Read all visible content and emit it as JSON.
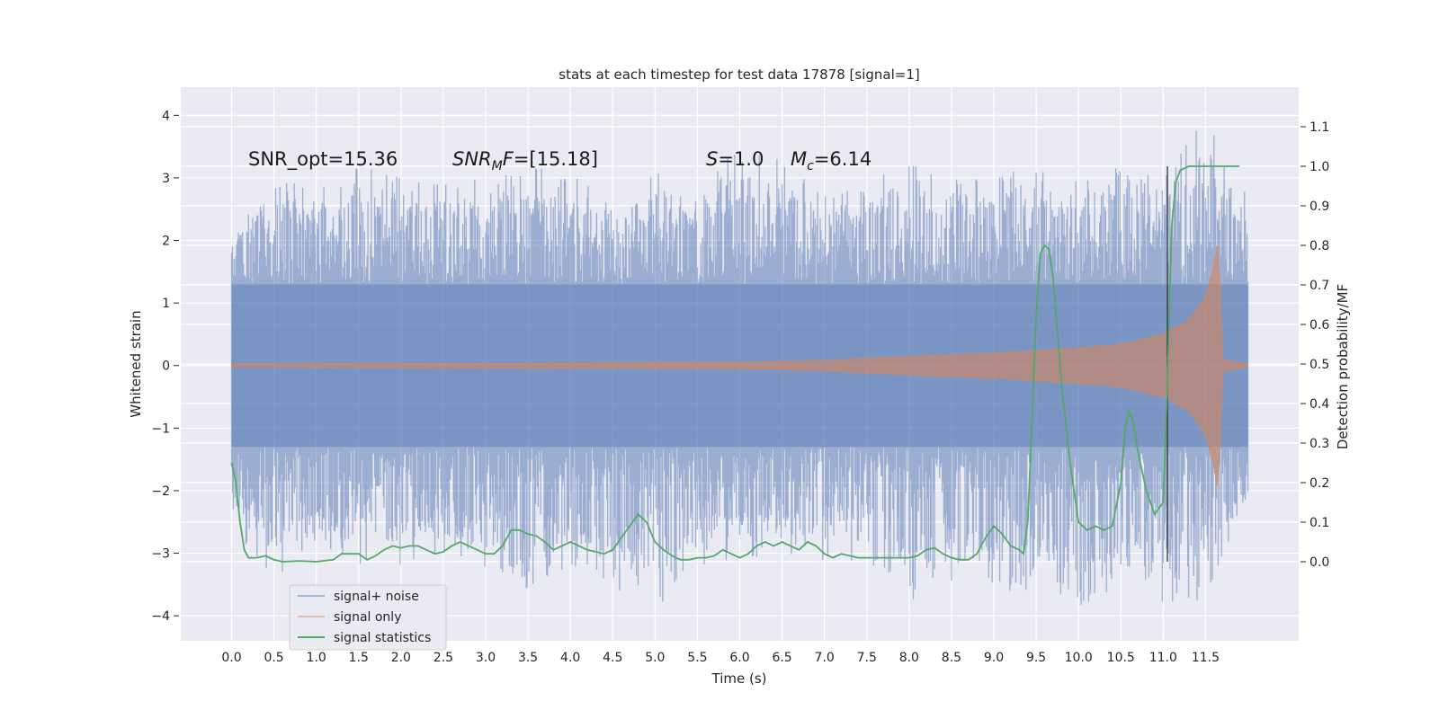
{
  "chart_data": {
    "type": "line",
    "title": "stats at each timestep for test data 17878 [signal=1]",
    "xlabel": "Time (s)",
    "ylabel": "Whitened strain",
    "y2label": "Detection probability/MF",
    "xlim": [
      -0.6,
      12.6
    ],
    "ylim": [
      -4.4,
      4.45
    ],
    "y2lim": [
      -0.2,
      1.2
    ],
    "x_ticks": [
      "0.0",
      "0.5",
      "1.0",
      "1.5",
      "2.0",
      "2.5",
      "3.0",
      "3.5",
      "4.0",
      "4.5",
      "5.0",
      "5.5",
      "6.0",
      "6.5",
      "7.0",
      "7.5",
      "8.0",
      "8.5",
      "9.0",
      "9.5",
      "10.0",
      "10.5",
      "11.0",
      "11.5"
    ],
    "y_ticks": [
      "4",
      "3",
      "2",
      "1",
      "0",
      "−1",
      "−2",
      "−3",
      "−4"
    ],
    "y2_ticks": [
      "1.1",
      "1.0",
      "0.9",
      "0.8",
      "0.7",
      "0.6",
      "0.5",
      "0.4",
      "0.3",
      "0.2",
      "0.1",
      "0.0"
    ],
    "grid": true,
    "legend_placement": "lower-left",
    "annotations": {
      "snr_opt": "SNR_opt=15.36",
      "snr_mf_math": "SNR",
      "snr_mf_sub": "M",
      "snr_mf_math2": "F",
      "snr_mf_value": "=[15.18]",
      "s_math": "S",
      "s_value": "=1.0",
      "mc_math": "M",
      "mc_sub": "c",
      "mc_value": "=6.14"
    },
    "vline_x": 11.05,
    "series": [
      {
        "name": "signal+ noise",
        "color": "#4c72b0",
        "envelope_x": [
          0.0,
          0.5,
          1.0,
          1.5,
          2.0,
          2.5,
          3.0,
          3.5,
          4.0,
          4.5,
          5.0,
          5.5,
          6.0,
          6.5,
          7.0,
          7.5,
          8.0,
          8.5,
          9.0,
          9.5,
          10.0,
          10.5,
          11.0,
          11.5,
          12.0
        ],
        "envelope_hi": [
          2.0,
          3.1,
          2.8,
          3.2,
          3.0,
          2.9,
          3.1,
          3.2,
          3.1,
          2.6,
          3.1,
          2.9,
          3.5,
          3.3,
          2.8,
          2.9,
          3.3,
          3.0,
          3.2,
          3.1,
          3.1,
          3.2,
          3.0,
          4.0,
          2.7
        ],
        "envelope_lo": [
          -2.6,
          -3.4,
          -3.0,
          -3.2,
          -3.2,
          -3.0,
          -3.3,
          -3.8,
          -3.3,
          -3.6,
          -3.9,
          -3.2,
          -3.1,
          -3.0,
          -3.2,
          -3.1,
          -3.8,
          -3.5,
          -3.6,
          -3.6,
          -3.9,
          -3.5,
          -3.8,
          -3.8,
          -2.2
        ]
      },
      {
        "name": "signal only",
        "color": "#dd8452",
        "amplitude_x": [
          0.0,
          2.0,
          4.0,
          6.0,
          7.0,
          8.0,
          9.0,
          10.0,
          10.5,
          11.0,
          11.3,
          11.5,
          11.6,
          11.65,
          11.7,
          12.0
        ],
        "amplitude": [
          0.02,
          0.03,
          0.04,
          0.05,
          0.08,
          0.15,
          0.2,
          0.28,
          0.34,
          0.5,
          0.72,
          1.1,
          1.6,
          2.0,
          0.1,
          0.02
        ]
      },
      {
        "name": "signal statistics",
        "color": "#55a868",
        "x": [
          0.0,
          0.05,
          0.1,
          0.15,
          0.2,
          0.3,
          0.4,
          0.5,
          0.6,
          0.8,
          1.0,
          1.2,
          1.3,
          1.4,
          1.5,
          1.6,
          1.7,
          1.8,
          1.9,
          2.0,
          2.1,
          2.2,
          2.3,
          2.4,
          2.5,
          2.6,
          2.7,
          2.8,
          2.9,
          3.0,
          3.1,
          3.2,
          3.3,
          3.4,
          3.5,
          3.6,
          3.7,
          3.8,
          3.9,
          4.0,
          4.1,
          4.2,
          4.3,
          4.4,
          4.5,
          4.6,
          4.7,
          4.8,
          4.9,
          5.0,
          5.1,
          5.2,
          5.3,
          5.4,
          5.5,
          5.6,
          5.7,
          5.8,
          5.9,
          6.0,
          6.1,
          6.2,
          6.3,
          6.4,
          6.5,
          6.6,
          6.7,
          6.8,
          6.9,
          7.0,
          7.1,
          7.2,
          7.4,
          7.6,
          7.8,
          8.0,
          8.1,
          8.2,
          8.3,
          8.4,
          8.5,
          8.6,
          8.7,
          8.8,
          8.9,
          9.0,
          9.1,
          9.2,
          9.3,
          9.35,
          9.4,
          9.45,
          9.5,
          9.55,
          9.6,
          9.65,
          9.7,
          9.8,
          9.9,
          10.0,
          10.1,
          10.2,
          10.3,
          10.4,
          10.5,
          10.55,
          10.6,
          10.65,
          10.7,
          10.8,
          10.9,
          11.0,
          11.05,
          11.1,
          11.15,
          11.2,
          11.3,
          11.5,
          11.7,
          11.9
        ],
        "y": [
          0.25,
          0.2,
          0.1,
          0.03,
          0.01,
          0.01,
          0.015,
          0.005,
          0.0,
          0.002,
          0.0,
          0.005,
          0.02,
          0.02,
          0.02,
          0.005,
          0.015,
          0.03,
          0.04,
          0.035,
          0.04,
          0.04,
          0.03,
          0.02,
          0.025,
          0.04,
          0.05,
          0.04,
          0.03,
          0.02,
          0.02,
          0.04,
          0.08,
          0.08,
          0.07,
          0.065,
          0.05,
          0.03,
          0.04,
          0.05,
          0.04,
          0.03,
          0.025,
          0.02,
          0.03,
          0.06,
          0.09,
          0.12,
          0.1,
          0.05,
          0.03,
          0.015,
          0.005,
          0.005,
          0.01,
          0.01,
          0.015,
          0.03,
          0.02,
          0.01,
          0.02,
          0.04,
          0.05,
          0.04,
          0.05,
          0.04,
          0.03,
          0.05,
          0.04,
          0.02,
          0.01,
          0.02,
          0.01,
          0.01,
          0.01,
          0.01,
          0.015,
          0.03,
          0.035,
          0.02,
          0.01,
          0.005,
          0.005,
          0.02,
          0.06,
          0.09,
          0.07,
          0.04,
          0.03,
          0.02,
          0.1,
          0.35,
          0.62,
          0.78,
          0.8,
          0.79,
          0.72,
          0.45,
          0.25,
          0.1,
          0.08,
          0.09,
          0.08,
          0.09,
          0.2,
          0.34,
          0.38,
          0.35,
          0.28,
          0.18,
          0.12,
          0.15,
          0.45,
          0.85,
          0.96,
          0.99,
          1.0,
          1.0,
          1.0,
          1.0
        ]
      }
    ]
  }
}
